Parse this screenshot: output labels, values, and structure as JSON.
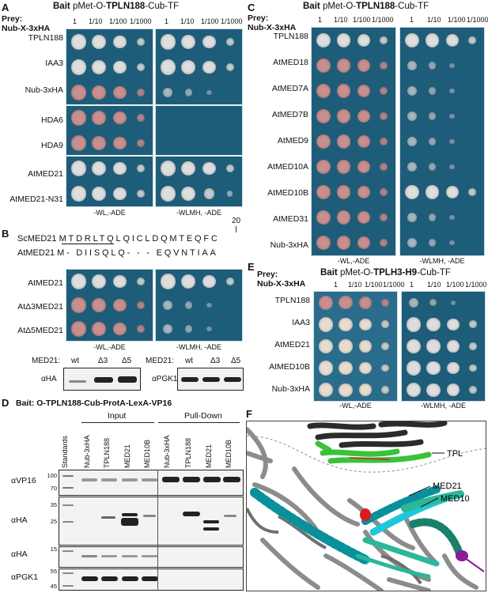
{
  "panel_a": {
    "letter": "A",
    "bait_prefix": "Bait",
    "bait_pre": "pMet-O-",
    "bait_bold": "TPLN188",
    "bait_post": "-Cub-TF",
    "prey_line1": "Prey:",
    "prey_line2": "Nub-X-3xHA",
    "dilutions": [
      "1",
      "1/10",
      "1/100",
      "1/1000"
    ],
    "rows": [
      "TPLN188",
      "IAA3",
      "Nub-3xHA",
      "HDA6",
      "HDA9",
      "AtMED21",
      "AtMED21-N31"
    ],
    "media_left": "-WL,-ADE",
    "media_right": "-WLMH, -ADE"
  },
  "panel_b": {
    "letter": "B",
    "num": "20",
    "seq1_label": "ScMED21",
    "seq1": "MTDRLTQLQICLDQMTEQFC",
    "seq2_label": "AtMED21",
    "seq2": "M- DIISQLQ- - - EQVNTIAA",
    "rows": [
      "AtMED21",
      "AtΔ3MED21",
      "AtΔ5MED21"
    ],
    "media_left": "-WL,-ADE",
    "media_right": "-WLMH, -ADE",
    "blot_header": "MED21:",
    "blot_lanes": [
      "wt",
      "Δ3",
      "Δ5"
    ],
    "blot1_label": "αHA",
    "blot2_label": "αPGK1"
  },
  "panel_c": {
    "letter": "C",
    "bait_prefix": "Bait",
    "bait_pre": "pMet-O-",
    "bait_bold": "TPLN188",
    "bait_post": "-Cub-TF",
    "prey_line1": "Prey:",
    "prey_line2": "Nub-X-3xHA",
    "dilutions": [
      "1",
      "1/10",
      "1/100",
      "1/1000"
    ],
    "rows": [
      "TPLN188",
      "AtMED18",
      "AtMED7A",
      "AtMED7B",
      "AtMED9",
      "AtMED10A",
      "AtMED10B",
      "AtMED31",
      "Nub-3xHA"
    ],
    "media_left": "-WL,-ADE",
    "media_right": "-WLMH, -ADE"
  },
  "panel_e": {
    "letter": "E",
    "bait_prefix": "Bait",
    "bait_pre": "pMet-O-",
    "bait_bold": "TPLH3-H9",
    "bait_post": "-Cub-TF",
    "prey_line1": "Prey:",
    "prey_line2": "Nub-X-3xHA",
    "dilutions": [
      "1",
      "1/10",
      "1/100",
      "1/1000"
    ],
    "rows": [
      "TPLN188",
      "IAA3",
      "AtMED21",
      "AtMED10B",
      "Nub-3xHA"
    ],
    "media_left": "-WL,-ADE",
    "media_right": "-WLMH, -ADE"
  },
  "panel_d": {
    "letter": "D",
    "title": "Bait: O-TPLN188-Cub-ProtA-LexA-VP16",
    "input_label": "Input",
    "pulldown_label": "Pull-Down",
    "standards_label": "Standards",
    "lanes": [
      "Nub-3xHA",
      "TPLN188",
      "MED21",
      "MED10B",
      "Nub-3xHA",
      "TPLN188",
      "MED21",
      "MED10B"
    ],
    "blots": [
      {
        "label": "αVP16",
        "markers": [
          "100",
          "70"
        ]
      },
      {
        "label": "αHA",
        "markers": [
          "35",
          "25"
        ]
      },
      {
        "label": "αHA",
        "markers": [
          "15"
        ]
      },
      {
        "label": "αPGK1",
        "markers": [
          "55",
          "45"
        ]
      }
    ]
  },
  "panel_f": {
    "letter": "F",
    "label_tpl": "TPL",
    "label_med21": "MED21",
    "label_med10": "MED10",
    "colors": {
      "tpl": "#39c23a",
      "med21": "#1fc8d8",
      "med10": "#2bb79a",
      "core": "#8c8c8c",
      "dark": "#2b2b2b",
      "red": "#d81c1c",
      "purple": "#8c1a9a"
    }
  }
}
